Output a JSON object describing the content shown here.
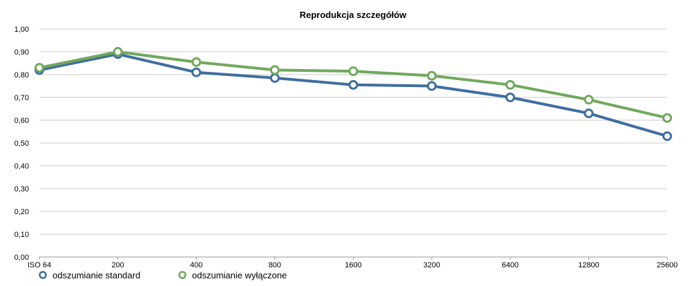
{
  "chart_data": {
    "type": "line",
    "title": "Reprodukcja szczegółów",
    "xlabel": "",
    "ylabel": "",
    "categories": [
      "ISO 64",
      "200",
      "400",
      "800",
      "1600",
      "3200",
      "6400",
      "12800",
      "25600"
    ],
    "ylim": [
      0,
      1
    ],
    "y_ticks": [
      "0,00",
      "0,10",
      "0,20",
      "0,30",
      "0,40",
      "0,50",
      "0,60",
      "0,70",
      "0,80",
      "0,90",
      "1,00"
    ],
    "grid": true,
    "legend_position": "bottom-left",
    "series": [
      {
        "name": "odszumianie standard",
        "color": "#3F6EA1",
        "values": [
          0.82,
          0.89,
          0.81,
          0.785,
          0.755,
          0.75,
          0.7,
          0.63,
          0.53
        ]
      },
      {
        "name": "odszumianie wyłączone",
        "color": "#70A85C",
        "values": [
          0.83,
          0.9,
          0.855,
          0.82,
          0.815,
          0.795,
          0.755,
          0.69,
          0.61
        ]
      }
    ]
  }
}
